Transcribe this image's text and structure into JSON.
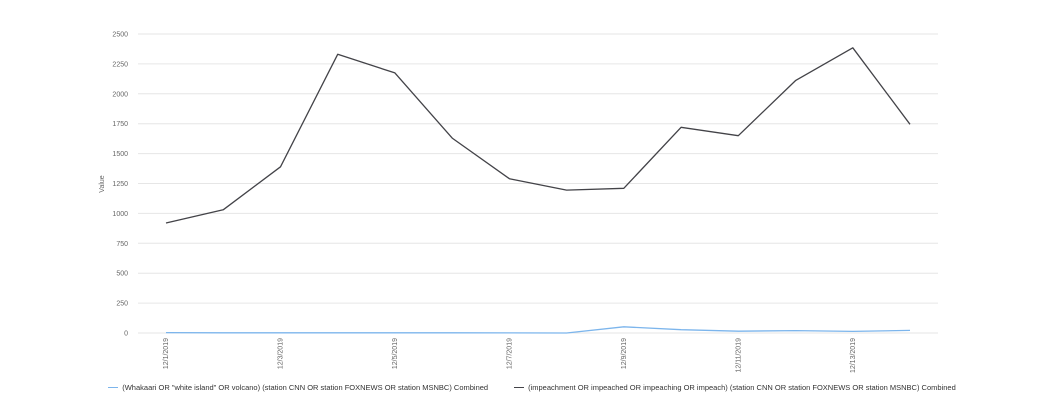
{
  "chart_data": {
    "type": "line",
    "title": "",
    "xlabel": "",
    "ylabel": "Value",
    "ylim": [
      0,
      2500
    ],
    "yticks": [
      0,
      250,
      500,
      750,
      1000,
      1250,
      1500,
      1750,
      2000,
      2250,
      2500
    ],
    "x": [
      "12/1/2019",
      "12/2/2019",
      "12/3/2019",
      "12/4/2019",
      "12/5/2019",
      "12/6/2019",
      "12/7/2019",
      "12/8/2019",
      "12/9/2019",
      "12/10/2019",
      "12/11/2019",
      "12/12/2019",
      "12/13/2019",
      "12/14/2019"
    ],
    "xtick_labels": [
      "12/1/2019",
      "12/3/2019",
      "12/5/2019",
      "12/7/2019",
      "12/9/2019",
      "12/11/2019",
      "12/13/2019"
    ],
    "grid": true,
    "legend_position": "bottom",
    "series": [
      {
        "name": "(Whakaari OR \"white island\" OR volcano) (station CNN OR station FOXNEWS OR station MSNBC)  Combined",
        "color": "#7cb5ec",
        "values": [
          3,
          2,
          2,
          2,
          2,
          2,
          1,
          0,
          52,
          28,
          15,
          20,
          13,
          22
        ]
      },
      {
        "name": "(impeachment OR impeached OR impeaching OR impeach) (station CNN OR station FOXNEWS OR station MSNBC)  Combined",
        "color": "#434348",
        "values": [
          920,
          1030,
          1390,
          2330,
          2175,
          1630,
          1290,
          1195,
          1210,
          1720,
          1650,
          2110,
          2385,
          1745
        ]
      }
    ]
  }
}
